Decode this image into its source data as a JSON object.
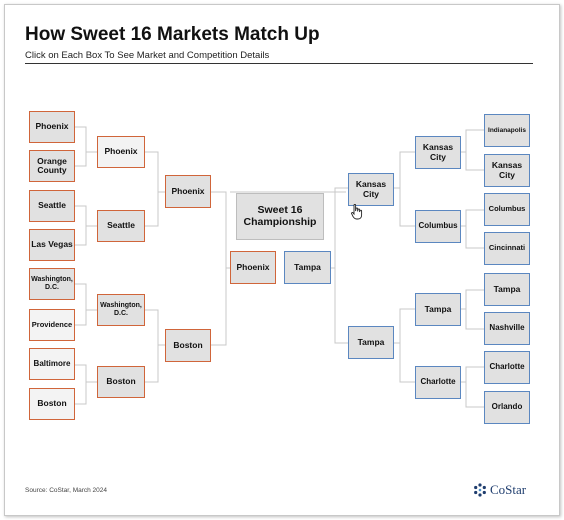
{
  "title": "How Sweet 16 Markets Match Up",
  "subtitle": "Click on Each Box To See Market and Competition Details",
  "source": "Source: CoStar, March 2024",
  "logo": {
    "text": "CoStar",
    "icon": "costar-logo-icon"
  },
  "colors": {
    "west": "#d0653a",
    "east": "#5b87c0",
    "box_fill": "#e1e1e1",
    "line": "#c8c8c8"
  },
  "championship": "Sweet 16 Championship",
  "left": {
    "round1": [
      "Phoenix",
      "Orange County",
      "Seattle",
      "Las Vegas",
      "Washington, D.C.",
      "Providence",
      "Baltimore",
      "Boston"
    ],
    "round2": [
      "Phoenix",
      "Seattle",
      "Washington, D.C.",
      "Boston"
    ],
    "round3": [
      "Phoenix",
      "Boston"
    ],
    "final": "Phoenix"
  },
  "right": {
    "round1": [
      "Indianapolis",
      "Kansas City",
      "Columbus",
      "Cincinnati",
      "Tampa",
      "Nashville",
      "Charlotte",
      "Orlando"
    ],
    "round2": [
      "Kansas City",
      "Columbus",
      "Tampa",
      "Charlotte"
    ],
    "round3": [
      "Kansas City",
      "Tampa"
    ],
    "final": "Tampa"
  }
}
